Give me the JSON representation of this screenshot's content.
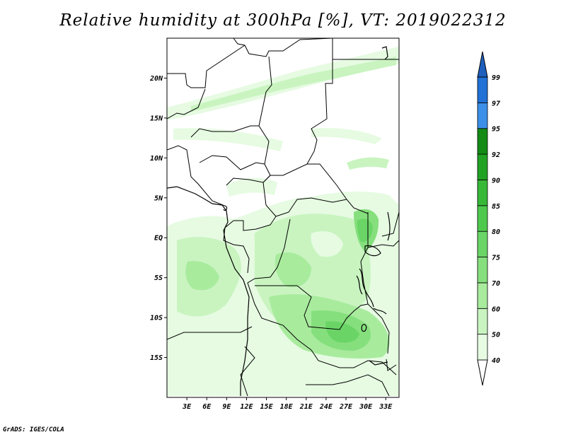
{
  "title": "Relative humidity at 300hPa [%], VT: 2019022312",
  "credit": "GrADS: IGES/COLA",
  "map": {
    "variable": "Relative humidity",
    "level": "300hPa",
    "units": "%",
    "valid_time": "2019022312",
    "lon_range": [
      0,
      35
    ],
    "lat_range": [
      -20,
      25
    ],
    "lat_ticks": [
      {
        "value": 20,
        "label": "20N"
      },
      {
        "value": 15,
        "label": "15N"
      },
      {
        "value": 10,
        "label": "10N"
      },
      {
        "value": 5,
        "label": "5N"
      },
      {
        "value": 0,
        "label": "EQ"
      },
      {
        "value": -5,
        "label": "5S"
      },
      {
        "value": -10,
        "label": "10S"
      },
      {
        "value": -15,
        "label": "15S"
      }
    ],
    "lon_ticks": [
      {
        "value": 3,
        "label": "3E"
      },
      {
        "value": 6,
        "label": "6E"
      },
      {
        "value": 9,
        "label": "9E"
      },
      {
        "value": 12,
        "label": "12E"
      },
      {
        "value": 15,
        "label": "15E"
      },
      {
        "value": 18,
        "label": "18E"
      },
      {
        "value": 21,
        "label": "21E"
      },
      {
        "value": 24,
        "label": "24E"
      },
      {
        "value": 27,
        "label": "27E"
      },
      {
        "value": 30,
        "label": "30E"
      },
      {
        "value": 33,
        "label": "33E"
      }
    ]
  },
  "colorbar": {
    "levels": [
      {
        "label": "40",
        "color": "#e6fbe2"
      },
      {
        "label": "50",
        "color": "#c9f4c0"
      },
      {
        "label": "60",
        "color": "#a8eb9d"
      },
      {
        "label": "70",
        "color": "#86df7d"
      },
      {
        "label": "75",
        "color": "#6ad566"
      },
      {
        "label": "80",
        "color": "#4fc94d"
      },
      {
        "label": "85",
        "color": "#37b837"
      },
      {
        "label": "90",
        "color": "#22a223"
      },
      {
        "label": "92",
        "color": "#138b15"
      },
      {
        "label": "95",
        "color": "#3c8fe8"
      },
      {
        "label": "97",
        "color": "#2171d6"
      },
      {
        "label": "99",
        "color": "#1e5fbe"
      }
    ],
    "under_color": "#ffffff",
    "over_color": "#1e5fbe"
  }
}
